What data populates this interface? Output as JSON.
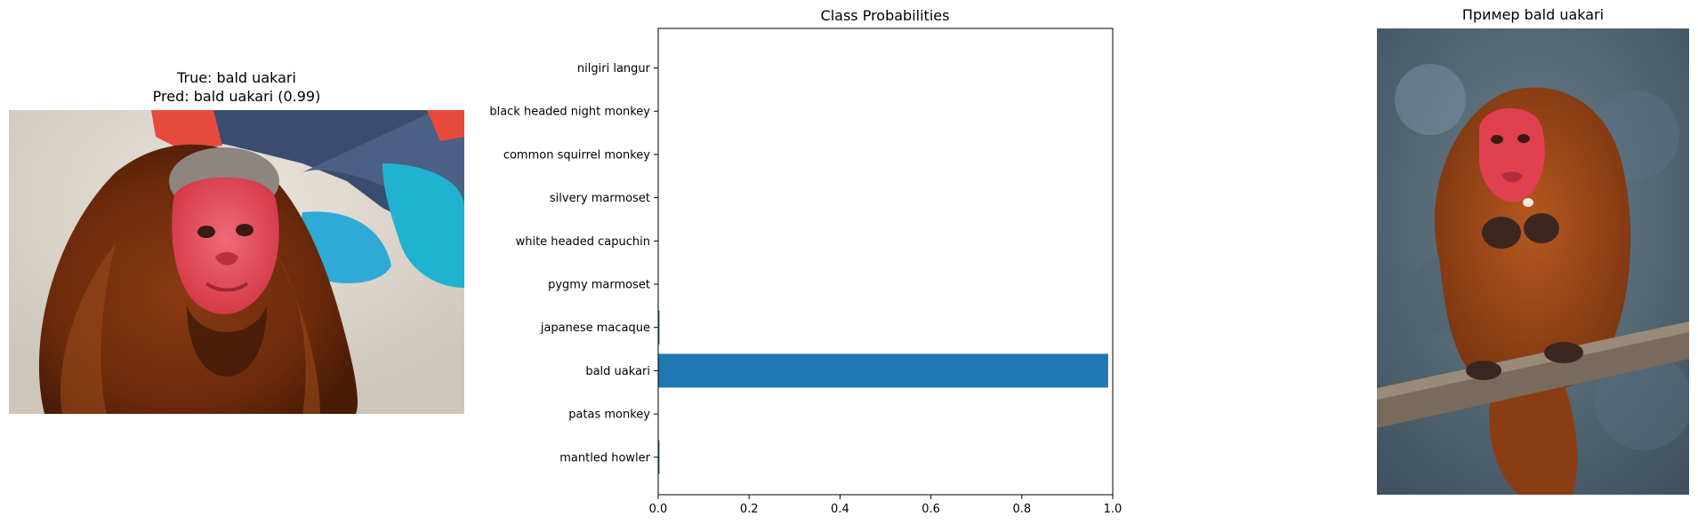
{
  "left_panel": {
    "title_line1": "True: bald uakari",
    "title_line2": "Pred: bald uakari (0.99)"
  },
  "right_panel": {
    "title": "Пример bald uakari"
  },
  "colors": {
    "bar": "#1f77b4",
    "axis": "#000000"
  },
  "chart_data": {
    "type": "bar",
    "orientation": "horizontal",
    "title": "Class Probabilities",
    "xlabel": "",
    "ylabel": "",
    "xlim": [
      0,
      1.0
    ],
    "xticks": [
      "0.0",
      "0.2",
      "0.4",
      "0.6",
      "0.8",
      "1.0"
    ],
    "grid": false,
    "categories_top_to_bottom": [
      "nilgiri langur",
      "black headed night monkey",
      "common squirrel monkey",
      "silvery marmoset",
      "white headed capuchin",
      "pygmy marmoset",
      "japanese macaque",
      "bald uakari",
      "patas monkey",
      "mantled howler"
    ],
    "values_top_to_bottom": [
      0.0,
      0.0,
      0.0,
      0.0,
      0.0,
      0.0,
      0.003,
      0.99,
      0.0,
      0.003
    ]
  }
}
